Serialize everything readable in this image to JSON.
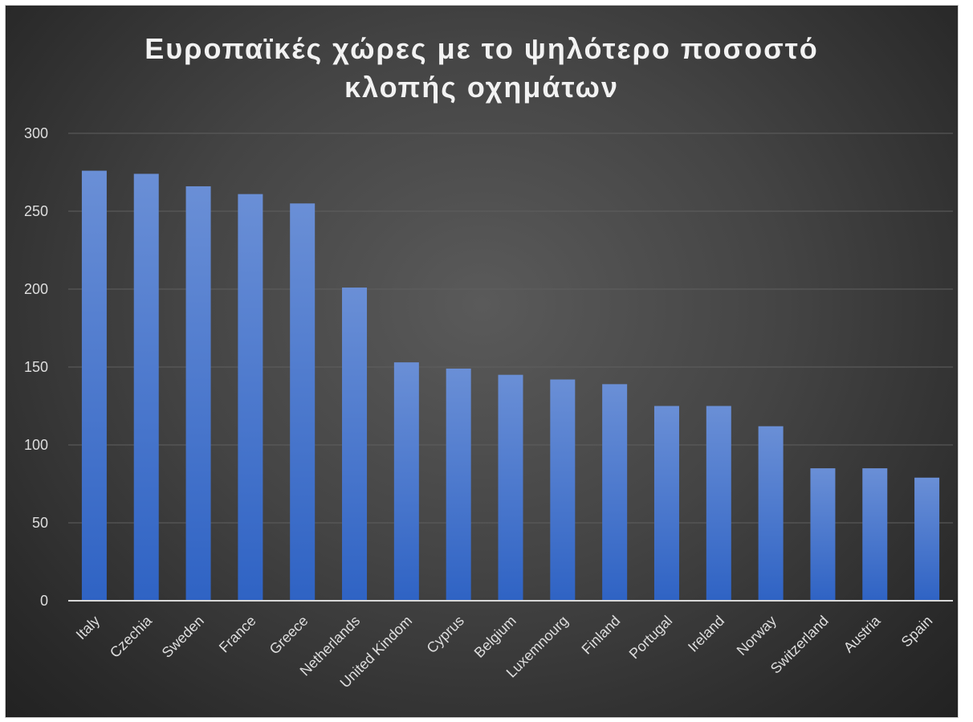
{
  "chart_data": {
    "type": "bar",
    "title": "Ευροπαϊκές χώρες με το ψηλότερο ποσοστό κλοπής οχημάτων",
    "categories": [
      "Italy",
      "Czechia",
      "Sweden",
      "France",
      "Greece",
      "Netherlands",
      "United Kindom",
      "Cyprus",
      "Belgium",
      "Luxemnourg",
      "Finland",
      "Portugal",
      "Ireland",
      "Norway",
      "Switzerland",
      "Austria",
      "Spain"
    ],
    "values": [
      276,
      274,
      266,
      261,
      255,
      201,
      153,
      149,
      145,
      142,
      139,
      125,
      125,
      112,
      85,
      85,
      79
    ],
    "y_ticks": [
      "0",
      "50",
      "100",
      "150",
      "200",
      "250",
      "300"
    ],
    "ylim": [
      0,
      300
    ],
    "xlabel": "",
    "ylabel": "",
    "grid": true,
    "legend": "none",
    "colors": {
      "bar_top": "#6a8fd6",
      "bar_bottom": "#2f63c4",
      "background_center": "#5a5a5a",
      "background_edge": "#222222",
      "gridline": "#5f5f5f",
      "axis": "#d9d9d9",
      "text": "#f2f2f2"
    }
  }
}
